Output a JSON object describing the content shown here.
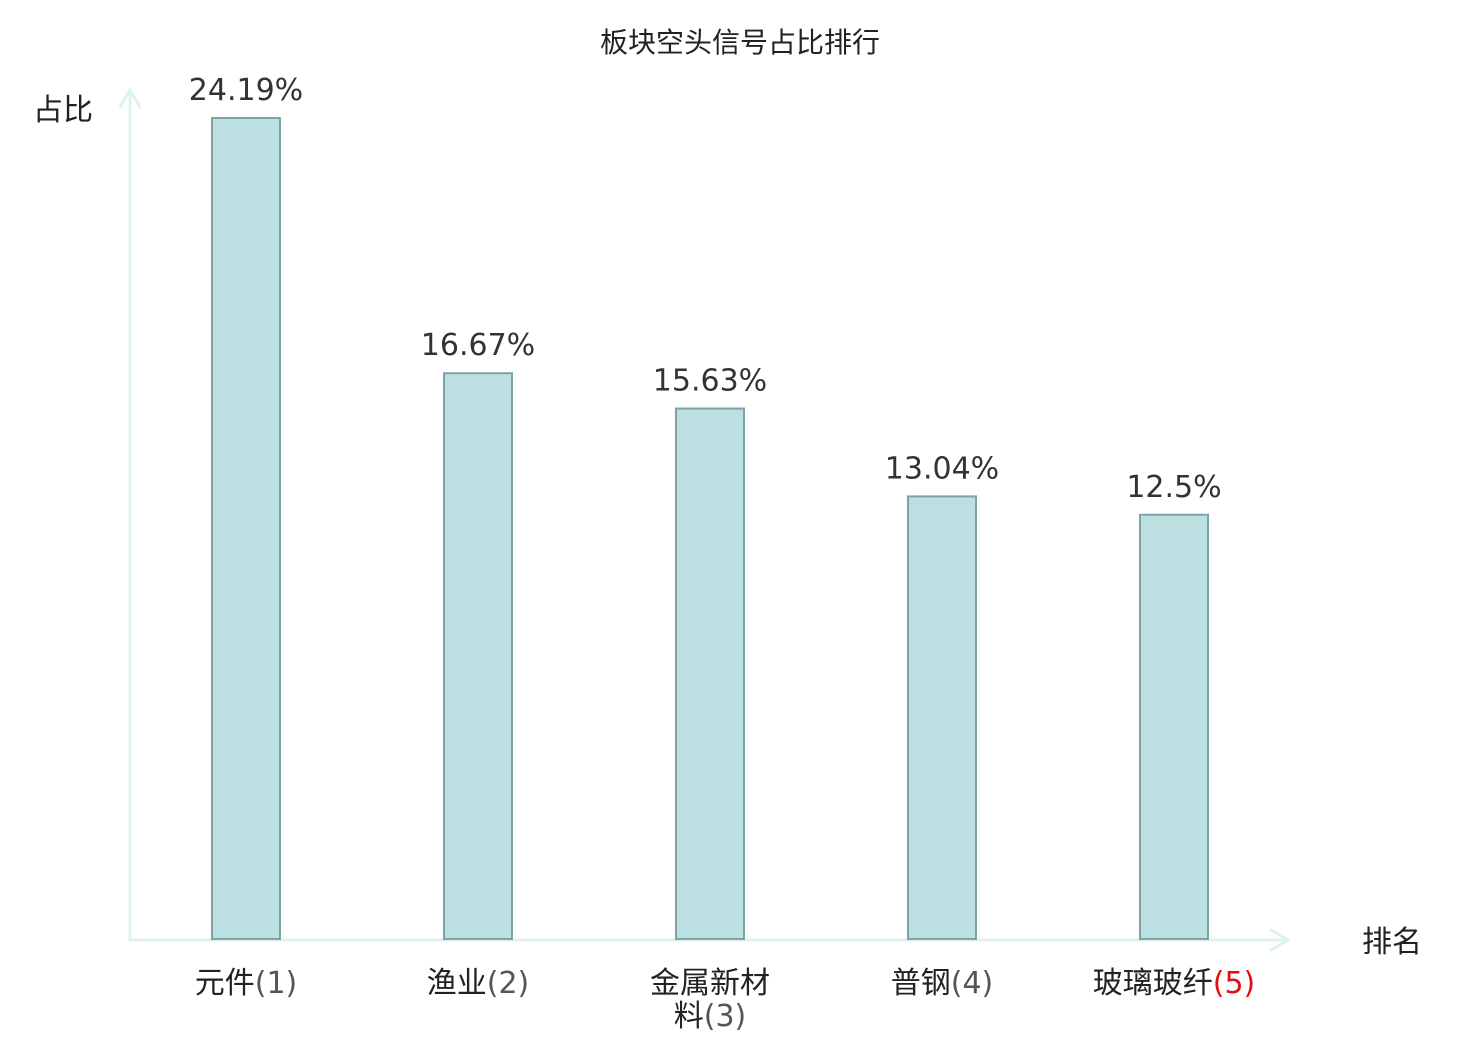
{
  "colors": {
    "bar_fill": "#bce0e1",
    "bar_stroke": "#7fa3a5",
    "axis": "#def2ef",
    "text": "#222222",
    "value_text": "#333333",
    "rank_text": "#555555",
    "highlight": "#e01010"
  },
  "chart_data": {
    "type": "bar",
    "title": "板块空头信号占比排行",
    "xlabel": "排名",
    "ylabel": "占比",
    "categories": [
      {
        "name": "元件",
        "rank": "(1)",
        "highlight": false
      },
      {
        "name": "渔业",
        "rank": "(2)",
        "highlight": false
      },
      {
        "name": "金属新材料",
        "rank": "(3)",
        "highlight": false
      },
      {
        "name": "普钢",
        "rank": "(4)",
        "highlight": false
      },
      {
        "name": "玻璃玻纤",
        "rank": "(5)",
        "highlight": true
      }
    ],
    "values": [
      24.19,
      16.67,
      15.63,
      13.04,
      12.5
    ],
    "value_labels": [
      "24.19%",
      "16.67%",
      "15.63%",
      "13.04%",
      "12.5%"
    ],
    "ylim": [
      0,
      24.19
    ],
    "grid": false,
    "legend": "none"
  }
}
